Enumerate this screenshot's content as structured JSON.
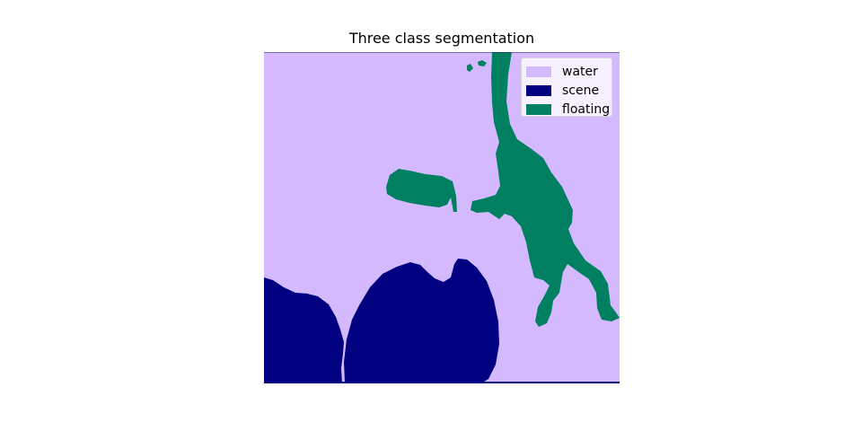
{
  "figure": {
    "title": "Three class segmentation"
  },
  "classes": [
    {
      "name": "water",
      "color": "#d5b9ff"
    },
    {
      "name": "scene",
      "color": "#000080"
    },
    {
      "name": "floating",
      "color": "#008060"
    }
  ],
  "legend": {
    "placement": "top-right",
    "items": [
      {
        "label": "water",
        "color": "#d5b9ff"
      },
      {
        "label": "scene",
        "color": "#000080"
      },
      {
        "label": "floating",
        "color": "#008060"
      }
    ]
  }
}
